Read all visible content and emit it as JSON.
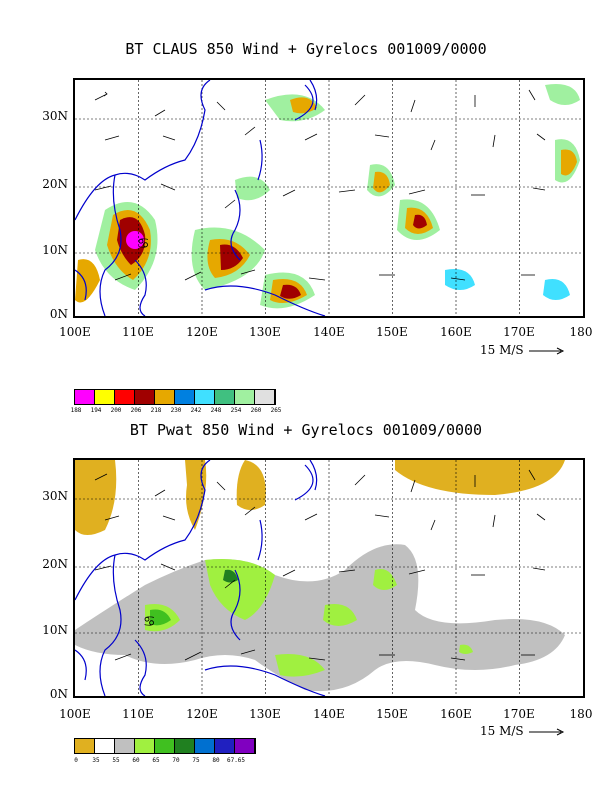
{
  "panels": [
    {
      "title": "BT CLAUS 850 Wind + Gyrelocs 001009/0000",
      "lat_labels": [
        "30N",
        "20N",
        "10N",
        "0N"
      ],
      "lon_labels": [
        "100E",
        "110E",
        "120E",
        "130E",
        "140E",
        "150E",
        "160E",
        "170E",
        "180"
      ],
      "scale_label": "15 M/S",
      "storm_marker": "♋",
      "legend": {
        "colors": [
          "#ff00ff",
          "#ffff00",
          "#ff0000",
          "#a00000",
          "#e6a800",
          "#0080e0",
          "#40e0ff",
          "#40c080",
          "#a0f0a0",
          "#e0e0e0"
        ],
        "ticks": [
          "188",
          "194",
          "200",
          "206",
          "218",
          "230",
          "242",
          "248",
          "254",
          "260",
          "265"
        ]
      }
    },
    {
      "title": "BT Pwat 850 Wind + Gyrelocs 001009/0000",
      "lat_labels": [
        "30N",
        "20N",
        "10N",
        "0N"
      ],
      "lon_labels": [
        "100E",
        "110E",
        "120E",
        "130E",
        "140E",
        "150E",
        "160E",
        "170E",
        "180"
      ],
      "scale_label": "15 M/S",
      "storm_marker": "♋",
      "legend": {
        "colors": [
          "#e0b020",
          "#ffffff",
          "#c0c0c0",
          "#a0f040",
          "#40c020",
          "#208020",
          "#0070d0",
          "#2020c0",
          "#8000c0"
        ],
        "ticks": [
          "0",
          "35",
          "55",
          "60",
          "65",
          "70",
          "75",
          "80",
          "67.65"
        ]
      }
    }
  ],
  "colors": {
    "coast": "#0000cc",
    "grid": "#000000"
  }
}
